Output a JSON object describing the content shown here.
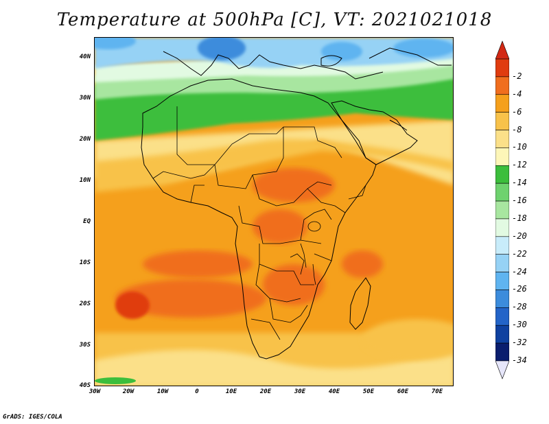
{
  "title": "Temperature at 500hPa [C], VT: 2021021018",
  "credit": "GrADS: IGES/COLA",
  "lat_ticks": [
    "40N",
    "30N",
    "20N",
    "10N",
    "EQ",
    "10S",
    "20S",
    "30S",
    "40S"
  ],
  "lon_ticks": [
    "30W",
    "20W",
    "10W",
    "0",
    "10E",
    "20E",
    "30E",
    "40E",
    "50E",
    "60E",
    "70E"
  ],
  "colorbar": {
    "labels": [
      "-2",
      "-4",
      "-6",
      "-8",
      "-10",
      "-12",
      "-14",
      "-16",
      "-18",
      "-20",
      "-22",
      "-24",
      "-26",
      "-28",
      "-30",
      "-32",
      "-34"
    ],
    "colors": [
      "#e03c0f",
      "#f06e1e",
      "#f5a01c",
      "#f8c24a",
      "#fbe089",
      "#fdf6b8",
      "#3cbe3c",
      "#6ed26e",
      "#a8e6a0",
      "#e2fae2",
      "#c8ecfa",
      "#96d2f5",
      "#5fb4f0",
      "#3c8cdc",
      "#2364c8",
      "#0f41a0",
      "#0a1e6e"
    ],
    "over_color": "#d22814",
    "under_color": "#e6e6fa"
  },
  "colors": {
    "border": "#000000",
    "ocean_warm": "#f5a01c",
    "land_hot": "#f06e1e",
    "north_green": "#3cbe3c",
    "north_blue": "#5fb4f0"
  }
}
